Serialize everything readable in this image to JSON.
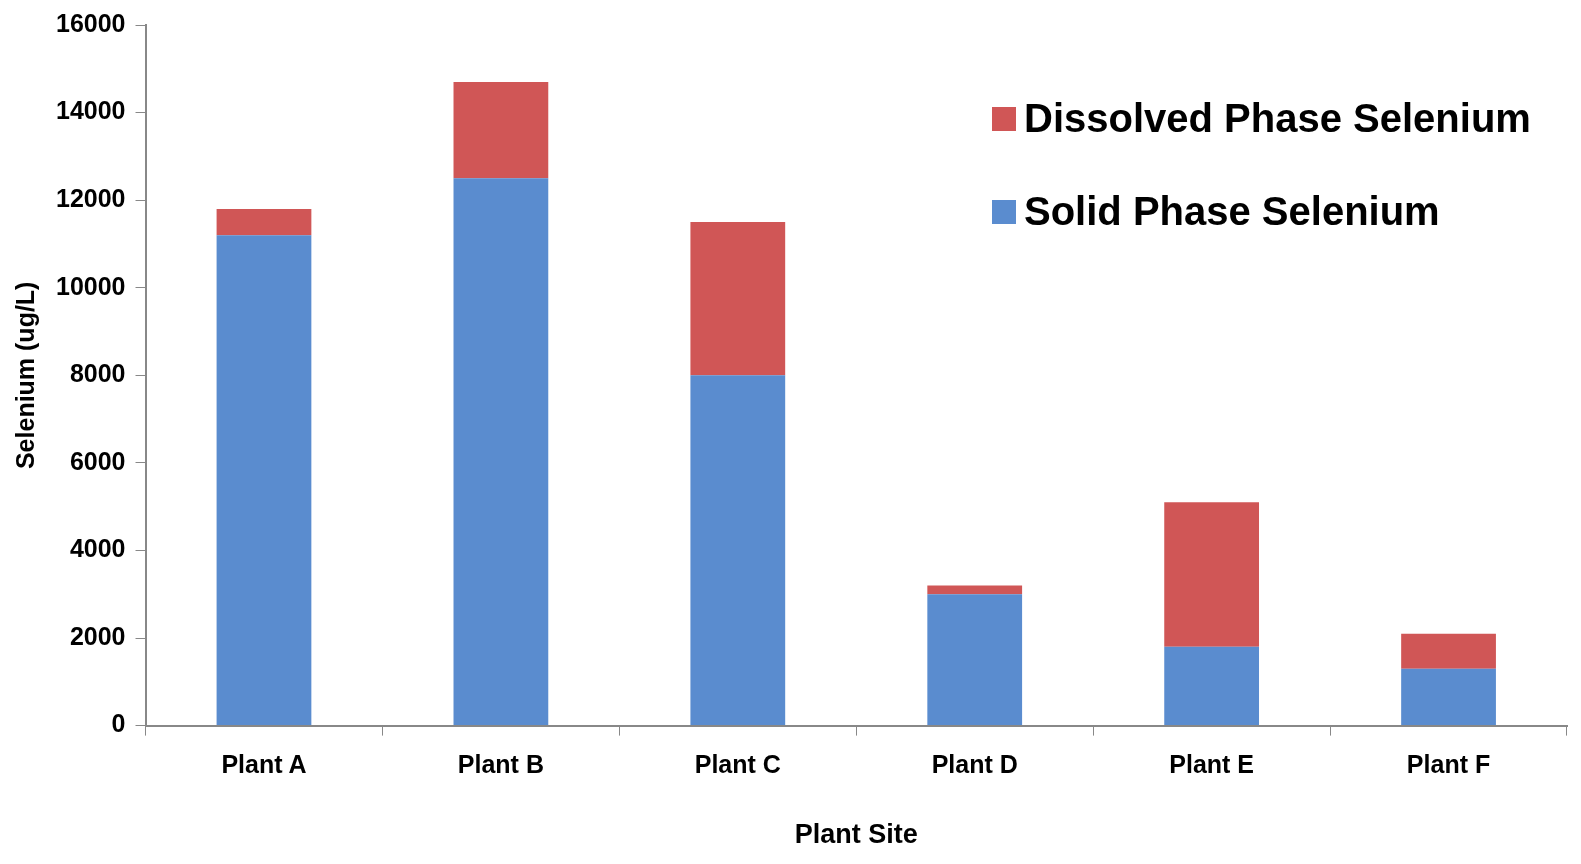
{
  "chart_data": {
    "type": "bar",
    "xlabel": "Plant Site",
    "ylabel": "Selenium (ug/L)",
    "categories": [
      "Plant A",
      "Plant B",
      "Plant C",
      "Plant D",
      "Plant E",
      "Plant F"
    ],
    "stacked": true,
    "series": [
      {
        "name": "Solid Phase Selenium",
        "color": "#5a8ccf",
        "values": [
          11200,
          12500,
          8000,
          3000,
          1800,
          1300
        ]
      },
      {
        "name": "Dissolved Phase Selenium",
        "color": "#d05656",
        "values": [
          600,
          2200,
          3500,
          200,
          3300,
          800
        ]
      }
    ],
    "ylim": [
      0,
      16000
    ],
    "yticks": [
      0,
      2000,
      4000,
      6000,
      8000,
      10000,
      12000,
      14000,
      16000
    ],
    "grid": false,
    "legend": "top right"
  }
}
